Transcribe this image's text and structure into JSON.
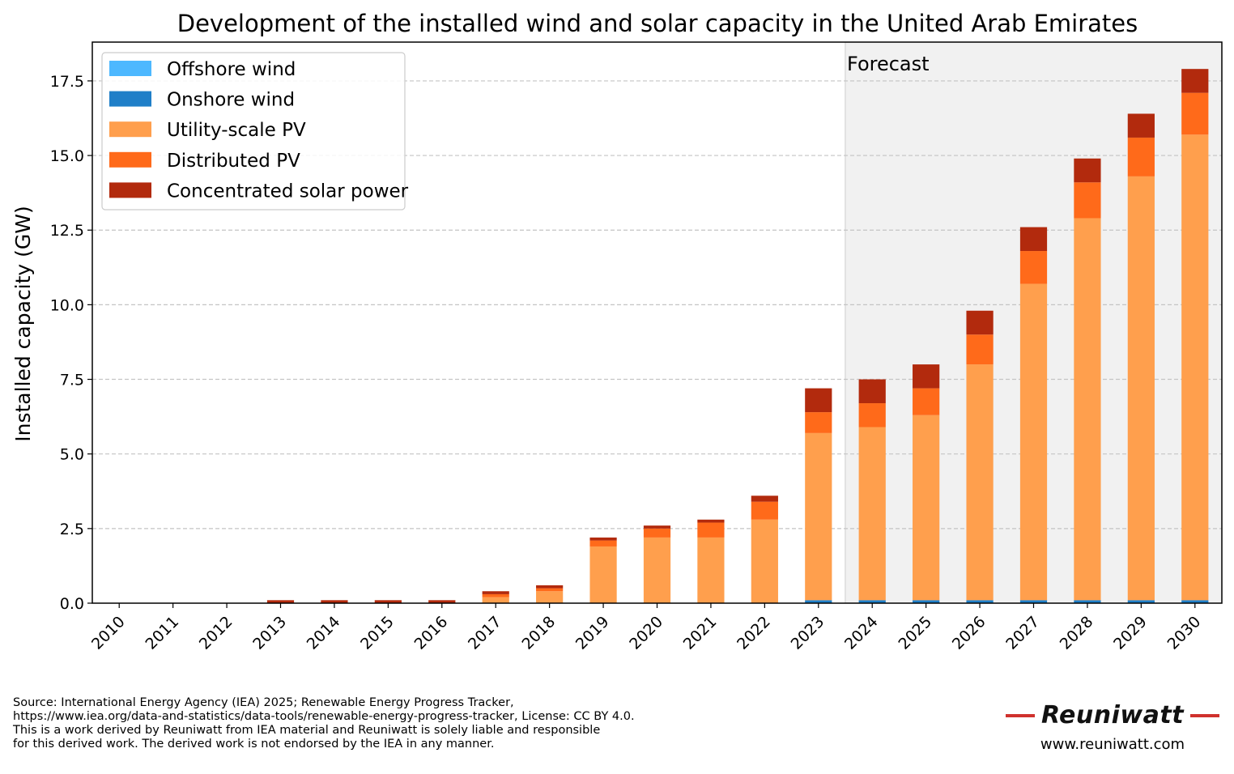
{
  "chart_data": {
    "type": "bar",
    "stacked": true,
    "title": "Development of the installed wind and solar capacity in the United Arab Emirates",
    "xlabel": "",
    "ylabel": "Installed capacity (GW)",
    "ylim": [
      0,
      18.8
    ],
    "yticks": [
      0.0,
      2.5,
      5.0,
      7.5,
      10.0,
      12.5,
      15.0,
      17.5
    ],
    "ytick_labels": [
      "0.0",
      "2.5",
      "5.0",
      "7.5",
      "10.0",
      "12.5",
      "15.0",
      "17.5"
    ],
    "grid": "horizontal dashed",
    "legend_position": "top-left",
    "forecast_label": "Forecast",
    "forecast_start_category": "2024",
    "categories": [
      "2010",
      "2011",
      "2012",
      "2013",
      "2014",
      "2015",
      "2016",
      "2017",
      "2018",
      "2019",
      "2020",
      "2021",
      "2022",
      "2023",
      "2024",
      "2025",
      "2026",
      "2027",
      "2028",
      "2029",
      "2030"
    ],
    "series": [
      {
        "name": "Offshore wind",
        "color": "#4db8ff",
        "values": [
          0,
          0,
          0,
          0,
          0,
          0,
          0,
          0,
          0,
          0,
          0,
          0,
          0,
          0,
          0,
          0,
          0,
          0,
          0,
          0,
          0
        ]
      },
      {
        "name": "Onshore wind",
        "color": "#1f7fc8",
        "values": [
          0,
          0,
          0,
          0,
          0,
          0,
          0,
          0,
          0,
          0,
          0,
          0,
          0,
          0.1,
          0.1,
          0.1,
          0.1,
          0.1,
          0.1,
          0.1,
          0.1
        ]
      },
      {
        "name": "Utility-scale PV",
        "color": "#ff9f4d",
        "values": [
          0,
          0,
          0,
          0,
          0,
          0,
          0,
          0.2,
          0.4,
          1.9,
          2.2,
          2.2,
          2.8,
          5.6,
          5.8,
          6.2,
          7.9,
          10.6,
          12.8,
          14.2,
          15.6
        ]
      },
      {
        "name": "Distributed PV",
        "color": "#ff6a1a",
        "values": [
          0,
          0,
          0,
          0,
          0,
          0,
          0,
          0.1,
          0.1,
          0.2,
          0.3,
          0.5,
          0.6,
          0.7,
          0.8,
          0.9,
          1.0,
          1.1,
          1.2,
          1.3,
          1.4
        ]
      },
      {
        "name": "Concentrated solar power",
        "color": "#b22a0d",
        "values": [
          0,
          0,
          0,
          0.1,
          0.1,
          0.1,
          0.1,
          0.1,
          0.1,
          0.1,
          0.1,
          0.1,
          0.2,
          0.8,
          0.8,
          0.8,
          0.8,
          0.8,
          0.8,
          0.8,
          0.8
        ]
      }
    ]
  },
  "footer": {
    "source_lines": [
      "Source: International Energy Agency (IEA) 2025; Renewable Energy Progress Tracker,",
      "https://www.iea.org/data-and-statistics/data-tools/renewable-energy-progress-tracker, License: CC BY 4.0.",
      "This is a work derived by Reuniwatt from IEA material and Reuniwatt is solely liable and responsible",
      "for this derived work. The derived work is not endorsed by the IEA in any manner."
    ],
    "brand_name": "Reuniwatt",
    "brand_url": "www.reuniwatt.com"
  }
}
